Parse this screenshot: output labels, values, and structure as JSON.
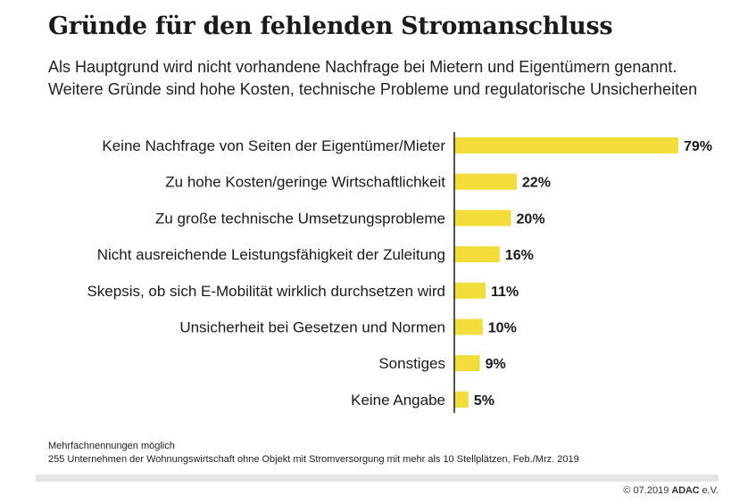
{
  "title": "Gründe für den fehlenden Stromanschluss",
  "subtitle_lines": [
    "Als Hauptgrund wird nicht vorhandene Nachfrage bei Mietern und Eigentümern genannt.",
    "Weitere Gründe sind hohe Kosten, technische Probleme und regulatorische Unsicherheiten"
  ],
  "notes": [
    "Mehrfachnennungen möglich",
    "255 Unternehmen der Wohnungswirtschaft ohne Objekt mit Stromversorgung mit mehr als 10 Stellplätzen, Feb./Mrz. 2019"
  ],
  "footer": {
    "copyright": "© 07.2019",
    "brand": "ADAC",
    "brand_suffix": "e.V."
  },
  "colors": {
    "bar": "#f2dd3a",
    "axis": "#1a1a1a",
    "text": "#1a1a1a",
    "footer_bar": "#e4e4e4"
  },
  "chart_data": {
    "type": "bar",
    "orientation": "horizontal",
    "categories": [
      "Keine Nachfrage von Seiten der Eigentümer/Mieter",
      "Zu hohe Kosten/geringe Wirtschaftlichkeit",
      "Zu große technische Umsetzungsprobleme",
      "Nicht ausreichende Leistungsfähigkeit der Zuleitung",
      "Skepsis, ob sich E-Mobilität wirklich durchsetzen wird",
      "Unsicherheit bei Gesetzen und Normen",
      "Sonstiges",
      "Keine Angabe"
    ],
    "values": [
      79,
      22,
      20,
      16,
      11,
      10,
      9,
      5
    ],
    "value_labels": [
      "79%",
      "22%",
      "20%",
      "16%",
      "11%",
      "10%",
      "9%",
      "5%"
    ],
    "unit": "%",
    "xlim": [
      0,
      79
    ],
    "grid": false,
    "legend": "none"
  }
}
